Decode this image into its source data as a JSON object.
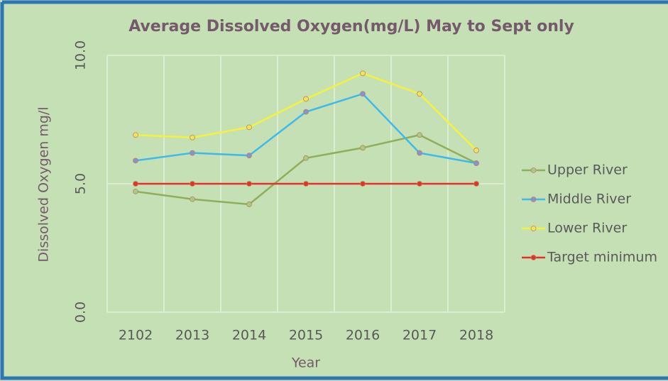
{
  "chart_data": {
    "type": "line",
    "title": "Average Dissolved Oxygen(mg/L)  May to Sept only",
    "xlabel": "Year",
    "ylabel": "Dissolved Oxygen mg/l",
    "categories": [
      "2102",
      "2013",
      "2014",
      "2015",
      "2016",
      "2017",
      "2018"
    ],
    "series": [
      {
        "name": "Upper River",
        "color": "#8fae5c",
        "marker_color": "#a9c985",
        "values": [
          4.7,
          4.4,
          4.2,
          6.0,
          6.4,
          6.9,
          5.8
        ]
      },
      {
        "name": "Middle River",
        "color": "#3fb9ea",
        "marker_color": "#8a8fd6",
        "values": [
          5.9,
          6.2,
          6.1,
          7.8,
          8.5,
          6.2,
          5.8
        ]
      },
      {
        "name": "Lower River",
        "color": "#f4f23c",
        "marker_color": "#f6e25a",
        "values": [
          6.9,
          6.8,
          7.2,
          8.3,
          9.3,
          8.5,
          6.3
        ]
      },
      {
        "name": "Target minimum",
        "color": "#e8302a",
        "marker_color": "#e8302a",
        "values": [
          5.0,
          5.0,
          5.0,
          5.0,
          5.0,
          5.0,
          5.0
        ]
      }
    ],
    "ylim": [
      0,
      10
    ],
    "yticks": [
      {
        "value": 0,
        "label": "0.0"
      },
      {
        "value": 5,
        "label": "5.0"
      },
      {
        "value": 10,
        "label": "10.0"
      }
    ],
    "grid": true,
    "legend": "right"
  }
}
